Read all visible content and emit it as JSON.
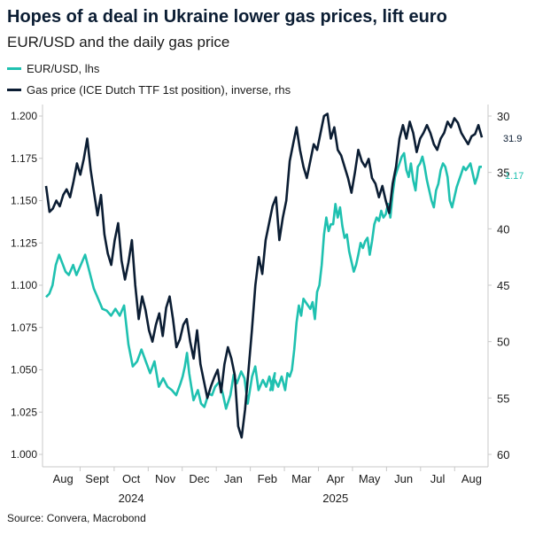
{
  "chart_data": {
    "type": "line",
    "title": "Hopes of a deal in Ukraine lower gas prices, lift euro",
    "subtitle": "EUR/USD and the daily gas price",
    "source": "Source: Convera, Macrobond",
    "left_axis": {
      "label": "EUR/USD, lhs",
      "ylim": [
        1.0,
        1.2
      ],
      "ticks": [
        "1.000",
        "1.025",
        "1.050",
        "1.075",
        "1.100",
        "1.125",
        "1.150",
        "1.175",
        "1.200"
      ]
    },
    "right_axis": {
      "inverted": true,
      "ylim": [
        30,
        60
      ],
      "ticks": [
        "30",
        "35",
        "40",
        "45",
        "50",
        "55",
        "60"
      ]
    },
    "x_axis": {
      "months": [
        "Aug",
        "Sept",
        "Oct",
        "Nov",
        "Dec",
        "Jan",
        "Feb",
        "Mar",
        "Apr",
        "May",
        "Jun",
        "Jul",
        "Aug"
      ],
      "years": [
        "2024",
        "2025"
      ]
    },
    "end_labels": {
      "gas": "31.9",
      "eurusd": "1.17"
    },
    "series": [
      {
        "name": "EUR/USD, lhs",
        "color": "#1fc1b0",
        "axis": "left",
        "t": [
          0,
          0.3,
          0.6,
          0.9,
          1.2,
          1.5,
          1.8,
          2.1,
          2.5,
          2.8,
          3.2,
          3.6,
          4.0,
          4.4,
          4.8,
          5.2,
          5.6,
          6.0,
          6.4,
          6.8,
          7.2,
          7.6,
          8.0,
          8.4,
          8.8,
          9.2,
          9.6,
          10.0,
          10.4,
          10.8,
          11.2,
          11.6,
          12.0,
          12.4,
          12.6,
          12.8,
          13.0,
          13.2,
          13.4,
          13.6,
          13.8,
          14.0,
          14.3,
          14.6,
          15.0,
          15.3,
          15.6,
          16.0,
          16.3,
          16.6,
          17.0,
          17.3,
          17.6,
          18.0,
          18.3,
          18.6,
          19.0,
          19.3,
          19.6,
          20.0,
          20.3,
          20.6,
          20.9,
          21.1
        ],
        "values": [
          1.093,
          1.095,
          1.1,
          1.112,
          1.118,
          1.113,
          1.108,
          1.106,
          1.112,
          1.106,
          1.112,
          1.118,
          1.108,
          1.098,
          1.092,
          1.086,
          1.085,
          1.082,
          1.086,
          1.082,
          1.088,
          1.065,
          1.052,
          1.055,
          1.062,
          1.055,
          1.048,
          1.055,
          1.04,
          1.045,
          1.04,
          1.038,
          1.035,
          1.042,
          1.046,
          1.052,
          1.06,
          1.048,
          1.04,
          1.032,
          1.035,
          1.038,
          1.03,
          1.028,
          1.036,
          1.035,
          1.04,
          1.043,
          1.036,
          1.027,
          1.035,
          1.047,
          1.042,
          1.049,
          1.045,
          1.03,
          1.046,
          1.052,
          1.038,
          1.044,
          1.04,
          1.046,
          1.038,
          1.048
        ],
        "t2": [
          19.6,
          20.0,
          20.3,
          20.6,
          20.9,
          21.1,
          21.3,
          21.5,
          21.7,
          21.9,
          22.1,
          22.3,
          22.5,
          22.7,
          22.9,
          23.1,
          23.3,
          23.5,
          23.7,
          23.9,
          24.1,
          24.3,
          24.5,
          24.7,
          24.9,
          25.1,
          25.3,
          25.5,
          25.7,
          25.9,
          26.1,
          26.3,
          26.5,
          26.7,
          26.9,
          27.1,
          27.3,
          27.5,
          27.7,
          27.9,
          28.1,
          28.3,
          28.5,
          28.7,
          28.9,
          29.1,
          29.3,
          29.5,
          29.7,
          29.9,
          30.1,
          30.3,
          30.5,
          30.7,
          30.9,
          31.1,
          31.3,
          31.5,
          31.7,
          31.9,
          32.1,
          32.3,
          32.5,
          32.7,
          32.9,
          33.1,
          33.3,
          33.5,
          33.7,
          33.9,
          34.1,
          34.3,
          34.5,
          34.7,
          34.9,
          35.1,
          35.3,
          35.5,
          35.7,
          35.9,
          36.1,
          36.3,
          36.5,
          36.7,
          36.9,
          37.1,
          37.3,
          37.5,
          37.7,
          37.9,
          38.1
        ],
        "values2": [
          1.038,
          1.044,
          1.04,
          1.046,
          1.038,
          1.048,
          1.046,
          1.05,
          1.062,
          1.078,
          1.088,
          1.082,
          1.092,
          1.09,
          1.088,
          1.086,
          1.09,
          1.08,
          1.096,
          1.1,
          1.112,
          1.13,
          1.14,
          1.132,
          1.136,
          1.136,
          1.148,
          1.14,
          1.146,
          1.135,
          1.128,
          1.13,
          1.12,
          1.114,
          1.108,
          1.112,
          1.118,
          1.125,
          1.122,
          1.126,
          1.128,
          1.118,
          1.126,
          1.136,
          1.14,
          1.138,
          1.144,
          1.14,
          1.142,
          1.148,
          1.14,
          1.154,
          1.164,
          1.168,
          1.172,
          1.176,
          1.178,
          1.168,
          1.164,
          1.172,
          1.162,
          1.156,
          1.17,
          1.172,
          1.176,
          1.17,
          1.162,
          1.156,
          1.15,
          1.146,
          1.156,
          1.16,
          1.168,
          1.172,
          1.17,
          1.164,
          1.15,
          1.146,
          1.152,
          1.158,
          1.162,
          1.166,
          1.17,
          1.168,
          1.17,
          1.172,
          1.166,
          1.16,
          1.164,
          1.17,
          1.17
        ]
      },
      {
        "name": "Gas price (ICE Dutch TTF 1st position), inverse, rhs",
        "color": "#0b1d33",
        "axis": "right",
        "t": [
          0,
          0.3,
          0.6,
          0.9,
          1.2,
          1.5,
          1.8,
          2.1,
          2.4,
          2.7,
          3.0,
          3.3,
          3.6,
          3.9,
          4.2,
          4.5,
          4.8,
          5.1,
          5.4,
          5.7,
          6.0,
          6.3,
          6.6,
          6.9,
          7.2,
          7.5,
          7.8,
          8.1,
          8.4,
          8.7,
          9.0,
          9.3,
          9.6,
          9.9,
          10.2,
          10.5,
          10.8,
          11.1,
          11.4,
          11.7,
          12.0,
          12.3,
          12.6,
          12.9,
          13.2,
          13.5,
          13.8,
          14.1,
          14.4,
          14.7,
          15.0,
          15.3,
          15.6,
          15.9,
          16.2,
          16.5,
          16.8,
          17.1,
          17.4,
          17.7,
          18.0,
          18.3,
          18.6,
          18.9,
          19.2,
          19.5,
          19.8,
          20.1,
          20.4,
          20.7,
          21.0,
          21.3,
          21.6,
          21.9,
          22.2,
          22.5,
          22.8,
          23.1,
          23.4,
          23.7,
          24.0,
          24.3,
          24.6,
          24.9,
          25.2,
          25.5,
          25.8,
          26.1,
          26.4,
          26.7,
          27.0,
          27.3,
          27.6,
          27.9,
          28.2,
          28.5,
          28.8,
          29.1,
          29.4,
          29.7,
          30.0,
          30.3,
          30.6,
          30.9,
          31.2,
          31.5,
          31.8,
          32.1,
          32.4,
          32.7,
          33.0,
          33.3,
          33.6,
          33.9,
          34.2,
          34.5,
          34.8,
          35.1,
          35.4,
          35.7,
          36.0,
          36.3,
          36.6,
          36.9,
          37.2,
          37.5,
          37.8,
          38.1
        ],
        "values": [
          36.2,
          38.5,
          38.2,
          37.5,
          38.0,
          37.0,
          36.5,
          37.2,
          35.8,
          34.2,
          35.2,
          33.8,
          32.0,
          34.8,
          36.8,
          38.8,
          37.0,
          40.5,
          42.2,
          43.2,
          41.0,
          39.5,
          42.8,
          44.5,
          43.0,
          41.0,
          45.0,
          48.0,
          46.0,
          47.2,
          49.0,
          50.0,
          48.5,
          47.5,
          49.5,
          47.0,
          46.0,
          48.0,
          50.5,
          49.8,
          48.5,
          48.0,
          50.0,
          51.5,
          49.0,
          52.0,
          53.5,
          55.0,
          54.0,
          53.2,
          52.5,
          54.5,
          52.0,
          50.5,
          51.5,
          53.0,
          57.5,
          58.5,
          56.0,
          52.5,
          49.0,
          45.0,
          42.5,
          44.0,
          41.0,
          39.5,
          38.0,
          37.2,
          41.0,
          39.0,
          37.5,
          34.0,
          32.5,
          31.0,
          33.0,
          34.5,
          35.5,
          34.0,
          32.5,
          33.0,
          31.5,
          30.0,
          29.8,
          32.0,
          31.0,
          33.0,
          33.5,
          34.5,
          35.5,
          36.8,
          35.0,
          33.0,
          34.0,
          34.5,
          33.8,
          35.5,
          36.0,
          37.2,
          36.2,
          37.5,
          38.6,
          36.0,
          34.5,
          32.0,
          30.8,
          32.0,
          30.5,
          31.5,
          33.2,
          32.0,
          31.5,
          30.8,
          31.5,
          32.5,
          33.0,
          32.0,
          31.5,
          30.5,
          31.0,
          30.2,
          30.6,
          31.5,
          32.0,
          32.5,
          31.8,
          31.6,
          30.8,
          31.9
        ],
        "t_override": true
      }
    ]
  },
  "legend": {
    "eurusd_label": "EUR/USD, lhs",
    "gas_label": "Gas price (ICE Dutch TTF 1st position), inverse, rhs",
    "eurusd_color": "#1fc1b0",
    "gas_color": "#0b1d33"
  }
}
